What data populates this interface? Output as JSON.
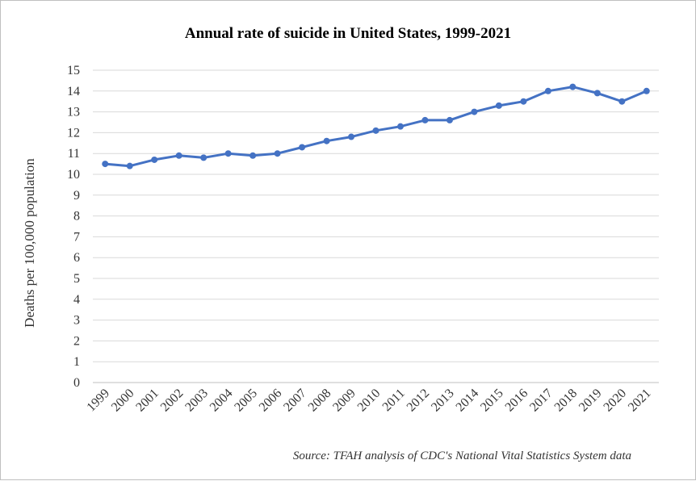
{
  "chart_data": {
    "type": "line",
    "title": "Annual rate of suicide in United States, 1999-2021",
    "ylabel": "Deaths per 100,000 population",
    "xlabel": "",
    "source": "Source: TFAH analysis of CDC's National Vital Statistics System data",
    "categories": [
      "1999",
      "2000",
      "2001",
      "2002",
      "2003",
      "2004",
      "2005",
      "2006",
      "2007",
      "2008",
      "2009",
      "2010",
      "2011",
      "2012",
      "2013",
      "2014",
      "2015",
      "2016",
      "2017",
      "2018",
      "2019",
      "2020",
      "2021"
    ],
    "values": [
      10.5,
      10.4,
      10.7,
      10.9,
      10.8,
      11.0,
      10.9,
      11.0,
      11.3,
      11.6,
      11.8,
      12.1,
      12.3,
      12.6,
      12.6,
      13.0,
      13.3,
      13.5,
      14.0,
      14.2,
      13.9,
      13.5,
      14.0
    ],
    "ylim": [
      0,
      15
    ],
    "yticks": [
      "0",
      "1",
      "2",
      "3",
      "4",
      "5",
      "6",
      "7",
      "8",
      "9",
      "10",
      "11",
      "12",
      "13",
      "14",
      "15"
    ],
    "grid": true,
    "legend": "none",
    "colors": {
      "line": "#4472C4",
      "grid": "#d9d9d9",
      "axis": "#bfbfbf"
    }
  }
}
